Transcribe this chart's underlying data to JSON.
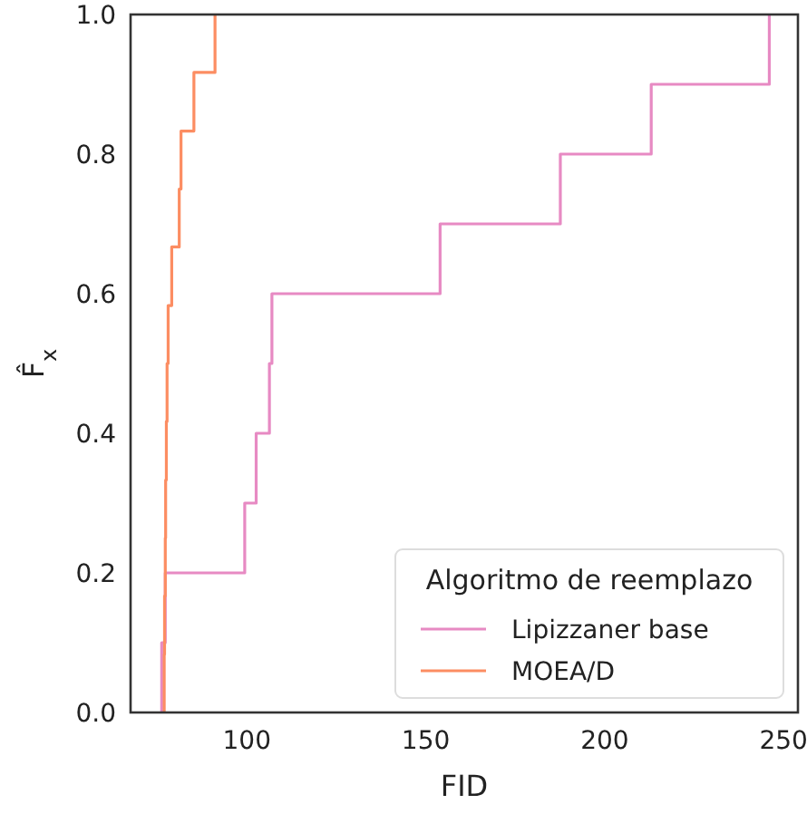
{
  "chart_data": {
    "type": "step",
    "xlabel": "FID",
    "ylabel": "F̂$_{x}$",
    "legend_title": "Algoritmo de reemplazo",
    "legend": "bottom right",
    "grid": false,
    "xlim": [
      67.5,
      254
    ],
    "xticks": [
      100,
      150,
      200,
      250
    ],
    "ylim": [
      0,
      1
    ],
    "yticks": [
      {
        "value": 0,
        "label": "0.0"
      },
      {
        "value": 0.2,
        "label": "0.2"
      },
      {
        "value": 0.4,
        "label": "0.4"
      },
      {
        "value": 0.6,
        "label": "0.6"
      },
      {
        "value": 0.8,
        "label": "0.8"
      },
      {
        "value": 1,
        "label": "1.0"
      }
    ],
    "series": [
      {
        "name": "Lipizzaner base",
        "color": "#e78ac3",
        "x": [
          76.2,
          76.2,
          77.2,
          99.4,
          102.6,
          106.3,
          107,
          154,
          187.6,
          213,
          246
        ],
        "values": [
          0,
          0.1,
          0.2,
          0.3,
          0.4,
          0.5,
          0.6,
          0.7,
          0.8,
          0.9,
          1.0
        ]
      },
      {
        "name": "MOEA/D",
        "color": "#fc8d62",
        "x": [
          76.9,
          76.9,
          77.0,
          77.2,
          77.3,
          77.5,
          77.7,
          78,
          79,
          81.1,
          81.6,
          85.2,
          91.1
        ],
        "values": [
          0,
          0.083,
          0.167,
          0.25,
          0.333,
          0.417,
          0.5,
          0.583,
          0.667,
          0.75,
          0.833,
          0.917,
          1.0
        ]
      }
    ]
  }
}
